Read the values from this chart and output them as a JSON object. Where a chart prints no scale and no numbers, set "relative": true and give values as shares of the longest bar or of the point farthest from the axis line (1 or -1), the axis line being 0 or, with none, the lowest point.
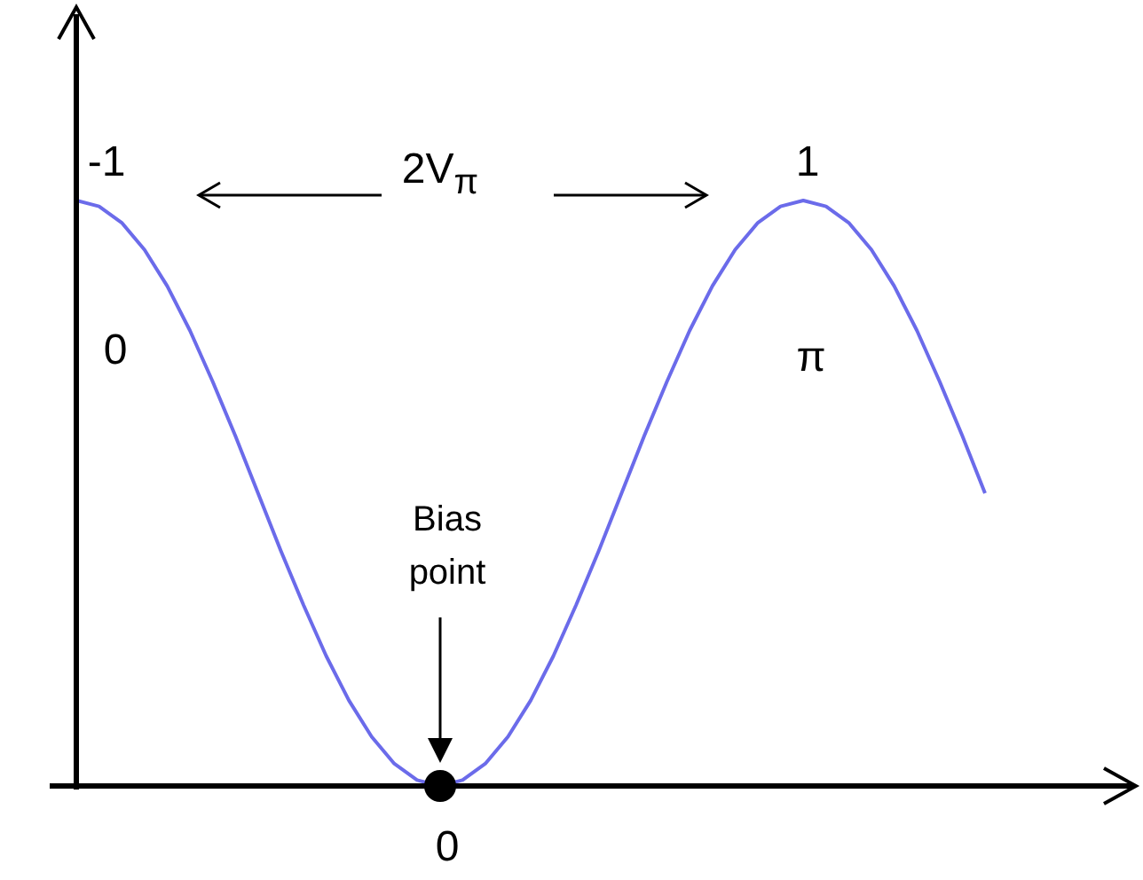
{
  "chart_data": {
    "type": "line",
    "relative": true,
    "categories": [
      null,
      null,
      null,
      null,
      null,
      null,
      null,
      null,
      null,
      null,
      null,
      null,
      null,
      null,
      null,
      null,
      null,
      null,
      null,
      null,
      null,
      null,
      null,
      null,
      null,
      null,
      null,
      null,
      null,
      null,
      null,
      null,
      null,
      null,
      null,
      null,
      null,
      null,
      null,
      null,
      null
    ],
    "series": [
      {
        "color": "#6b6bea",
        "values": [
          1,
          0.99,
          0.962,
          0.916,
          0.854,
          0.778,
          0.691,
          0.598,
          0.5,
          0.402,
          0.309,
          0.222,
          0.146,
          0.084,
          0.038,
          0.01,
          0,
          0.01,
          0.038,
          0.084,
          0.146,
          0.222,
          0.309,
          0.402,
          0.5,
          0.598,
          0.691,
          0.778,
          0.854,
          0.916,
          0.962,
          0.99,
          1,
          0.99,
          0.962,
          0.916,
          0.854,
          0.778,
          0.691,
          0.598,
          0.5
        ]
      }
    ],
    "annotations": [
      "-1",
      "1",
      "0",
      "π",
      "0",
      "Bias point",
      "2V$_{π}$"
    ]
  }
}
